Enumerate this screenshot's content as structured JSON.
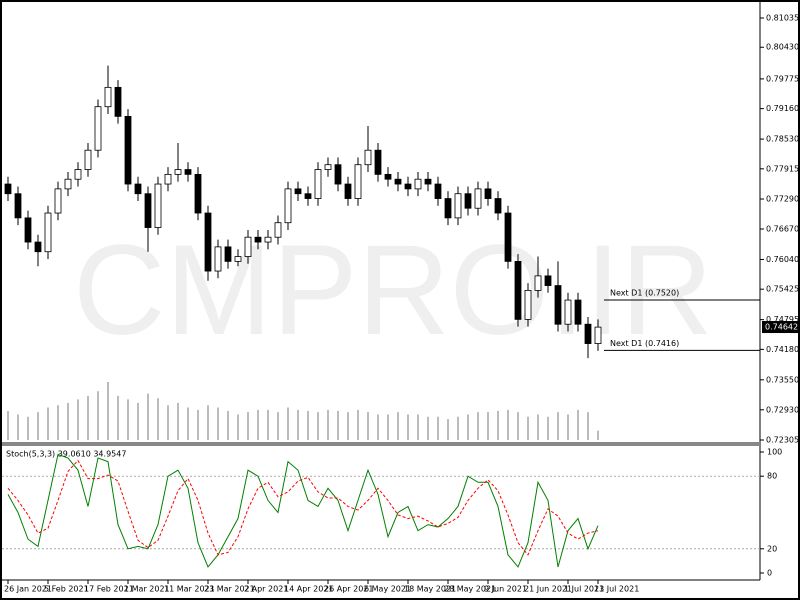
{
  "chart_data": [
    {
      "type": "candlestick",
      "watermark": "CMPRO.IR",
      "categories": [
        "26 Jan 2021",
        null,
        null,
        null,
        "5 Feb 2021",
        null,
        null,
        null,
        "17 Feb 2021",
        null,
        null,
        null,
        "1 Mar 2021",
        null,
        null,
        null,
        "11 Mar 2021",
        null,
        null,
        null,
        "23 Mar 2021",
        null,
        null,
        null,
        "2 Apr 2021",
        null,
        null,
        null,
        "14 Apr 2021",
        null,
        null,
        null,
        "26 Apr 2021",
        null,
        null,
        null,
        "6 May 2021",
        null,
        null,
        null,
        "18 May 2021",
        null,
        null,
        null,
        "28 May 2021",
        null,
        null,
        null,
        "9 Jun 2021",
        null,
        null,
        null,
        "21 Jun 2021",
        null,
        null,
        null,
        "1 Jul 2021",
        null,
        null,
        "13 Jul 2021"
      ],
      "open": [
        0.776,
        0.774,
        0.769,
        0.764,
        0.762,
        0.77,
        0.775,
        0.777,
        0.779,
        0.783,
        0.792,
        0.796,
        0.79,
        0.776,
        0.774,
        0.767,
        0.776,
        0.778,
        0.779,
        0.778,
        0.77,
        0.758,
        0.763,
        0.76,
        0.761,
        0.765,
        0.764,
        0.765,
        0.768,
        0.775,
        0.774,
        0.773,
        0.779,
        0.78,
        0.776,
        0.773,
        0.78,
        0.783,
        0.778,
        0.777,
        0.776,
        0.775,
        0.777,
        0.776,
        0.773,
        0.769,
        0.774,
        0.771,
        0.775,
        0.773,
        0.77,
        0.76,
        0.748,
        0.754,
        0.757,
        0.755,
        0.747,
        0.752,
        0.747,
        0.743
      ],
      "high": [
        0.7775,
        0.7755,
        0.7705,
        0.7655,
        0.7715,
        0.7765,
        0.7785,
        0.7805,
        0.7845,
        0.7935,
        0.8005,
        0.7975,
        0.7915,
        0.7775,
        0.7755,
        0.7775,
        0.7795,
        0.7845,
        0.7805,
        0.7795,
        0.7715,
        0.7645,
        0.7645,
        0.7625,
        0.7665,
        0.7665,
        0.7665,
        0.7695,
        0.7765,
        0.7765,
        0.7755,
        0.7805,
        0.7815,
        0.7815,
        0.7775,
        0.7815,
        0.788,
        0.7845,
        0.7795,
        0.7785,
        0.7775,
        0.7785,
        0.7785,
        0.7775,
        0.7745,
        0.7755,
        0.7755,
        0.7765,
        0.7765,
        0.7745,
        0.7715,
        0.7615,
        0.7555,
        0.761,
        0.7585,
        0.76,
        0.7535,
        0.7535,
        0.7485,
        0.748
      ],
      "low": [
        0.7725,
        0.7675,
        0.7625,
        0.759,
        0.7605,
        0.7685,
        0.7735,
        0.7755,
        0.7775,
        0.7815,
        0.7905,
        0.7885,
        0.7745,
        0.7725,
        0.762,
        0.7655,
        0.7745,
        0.7765,
        0.7765,
        0.7685,
        0.756,
        0.7565,
        0.7585,
        0.759,
        0.7595,
        0.7625,
        0.7625,
        0.7635,
        0.7665,
        0.7725,
        0.7715,
        0.7715,
        0.7775,
        0.7745,
        0.7715,
        0.7715,
        0.7785,
        0.7765,
        0.7755,
        0.7745,
        0.7735,
        0.7735,
        0.7745,
        0.7715,
        0.7675,
        0.7675,
        0.7695,
        0.7695,
        0.7715,
        0.7685,
        0.7585,
        0.7465,
        0.7465,
        0.7525,
        0.7535,
        0.7455,
        0.7455,
        0.7455,
        0.74,
        0.7415
      ],
      "close": [
        0.774,
        0.769,
        0.764,
        0.762,
        0.77,
        0.775,
        0.777,
        0.779,
        0.783,
        0.792,
        0.796,
        0.79,
        0.776,
        0.774,
        0.767,
        0.776,
        0.778,
        0.779,
        0.778,
        0.77,
        0.758,
        0.763,
        0.76,
        0.761,
        0.765,
        0.764,
        0.765,
        0.768,
        0.775,
        0.774,
        0.773,
        0.779,
        0.78,
        0.776,
        0.773,
        0.78,
        0.783,
        0.778,
        0.777,
        0.776,
        0.775,
        0.777,
        0.776,
        0.773,
        0.769,
        0.774,
        0.771,
        0.775,
        0.773,
        0.77,
        0.76,
        0.748,
        0.754,
        0.757,
        0.755,
        0.747,
        0.752,
        0.747,
        0.743,
        0.7464
      ],
      "volume": [
        25,
        22,
        20,
        24,
        28,
        30,
        32,
        35,
        38,
        42,
        50,
        38,
        35,
        32,
        40,
        36,
        30,
        32,
        28,
        26,
        30,
        28,
        25,
        22,
        24,
        26,
        26,
        24,
        28,
        26,
        25,
        24,
        26,
        25,
        24,
        26,
        24,
        22,
        22,
        24,
        22,
        22,
        20,
        20,
        18,
        20,
        22,
        24,
        24,
        25,
        26,
        24,
        20,
        22,
        20,
        24,
        22,
        26,
        24,
        8
      ],
      "up_color": "#ffffff",
      "down_color": "#000000",
      "volume_color": "#777777",
      "ylim": [
        0.72305,
        0.81035
      ],
      "yticks": [
        0.81035,
        {
          "value": 0.8043,
          "label": "0.80430"
        },
        0.79775,
        {
          "value": 0.7916,
          "label": "0.79160"
        },
        {
          "value": 0.7853,
          "label": "0.78530"
        },
        0.77915,
        {
          "value": 0.7729,
          "label": "0.77290"
        },
        {
          "value": 0.7667,
          "label": "0.76670"
        },
        {
          "value": 0.7604,
          "label": "0.76040"
        },
        0.75425,
        0.74795,
        {
          "value": 0.7418,
          "label": "0.74180"
        },
        {
          "value": 0.7355,
          "label": "0.73550"
        },
        {
          "value": 0.7293,
          "label": "0.72930"
        },
        0.72305
      ],
      "current_price": 0.74642,
      "annotations": [
        {
          "label": "Next D1 (0.7520)",
          "value": 0.752
        },
        {
          "label": "Next D1 (0.7416)",
          "value": 0.7416
        }
      ]
    },
    {
      "type": "line",
      "title": "Stoch(5,3,3) 39.0610 34.9547",
      "ylim": [
        0,
        100
      ],
      "yticks": [
        0,
        20,
        80,
        100
      ],
      "levels": [
        20,
        80
      ],
      "series": [
        {
          "color": "#008000",
          "dash": false,
          "values": [
            65,
            50,
            28,
            22,
            60,
            98,
            95,
            85,
            55,
            95,
            92,
            40,
            20,
            22,
            20,
            40,
            80,
            85,
            70,
            25,
            5,
            15,
            30,
            45,
            85,
            80,
            60,
            50,
            92,
            85,
            60,
            55,
            70,
            60,
            35,
            60,
            85,
            65,
            30,
            50,
            55,
            35,
            40,
            38,
            45,
            55,
            80,
            75,
            75,
            55,
            15,
            5,
            25,
            75,
            60,
            5,
            35,
            45,
            20,
            39.061
          ]
        },
        {
          "color": "#ff0000",
          "dash": true,
          "values": [
            70,
            60,
            48,
            33,
            37,
            60,
            84,
            93,
            78,
            78,
            81,
            76,
            51,
            27,
            21,
            27,
            47,
            68,
            78,
            60,
            33,
            15,
            17,
            30,
            53,
            70,
            75,
            63,
            67,
            76,
            79,
            67,
            62,
            62,
            55,
            52,
            60,
            70,
            60,
            48,
            45,
            47,
            43,
            38,
            41,
            46,
            60,
            70,
            77,
            68,
            48,
            25,
            15,
            35,
            53,
            47,
            33,
            28,
            33,
            34.9547
          ]
        }
      ]
    }
  ]
}
